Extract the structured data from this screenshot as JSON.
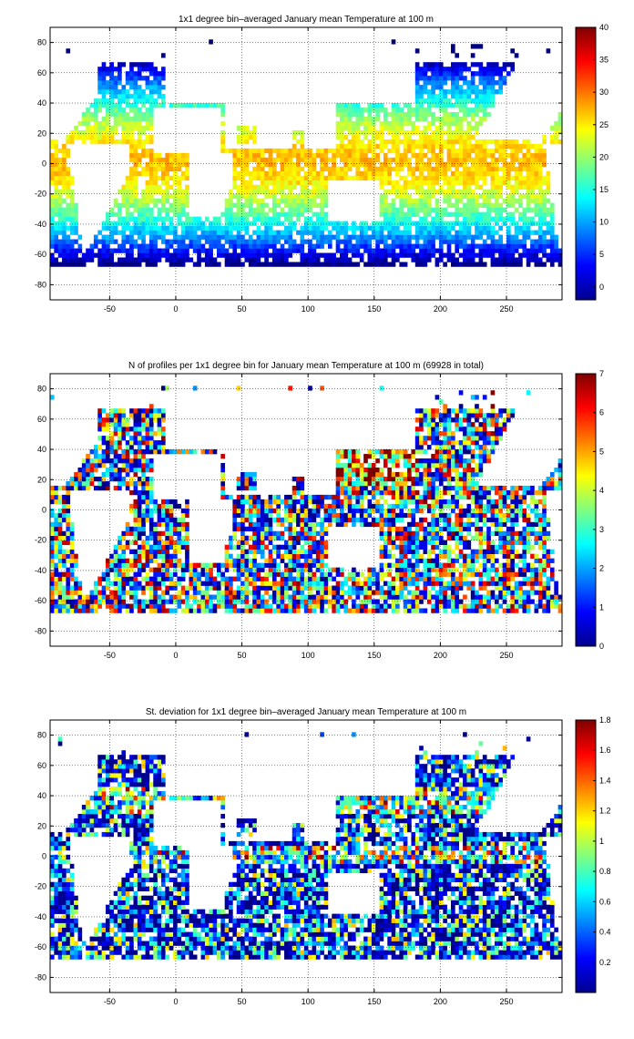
{
  "chart_data": [
    {
      "type": "heatmap",
      "title": "1x1 degree bin–averaged January mean Temperature at 100 m",
      "xlim": [
        -95,
        292
      ],
      "ylim": [
        -90,
        90
      ],
      "x_ticks": [
        -50,
        0,
        50,
        100,
        150,
        200,
        250
      ],
      "y_ticks": [
        80,
        60,
        40,
        20,
        0,
        -20,
        -40,
        -60,
        -80
      ],
      "colorbar": {
        "min": -2,
        "max": 40,
        "ticks": [
          0,
          5,
          10,
          15,
          20,
          25,
          30,
          35,
          40
        ]
      },
      "colormap": "jet",
      "grid": true
    },
    {
      "type": "heatmap",
      "title": "N of profiles per 1x1 degree bin for January mean Temperature at 100 m (69928 in total)",
      "xlim": [
        -95,
        292
      ],
      "ylim": [
        -90,
        90
      ],
      "x_ticks": [
        -50,
        0,
        50,
        100,
        150,
        200,
        250
      ],
      "y_ticks": [
        80,
        60,
        40,
        20,
        0,
        -20,
        -40,
        -60,
        -80
      ],
      "colorbar": {
        "min": 0,
        "max": 7,
        "ticks": [
          0,
          1,
          2,
          3,
          4,
          5,
          6,
          7
        ]
      },
      "colormap": "jet",
      "grid": true
    },
    {
      "type": "heatmap",
      "title": "St. deviation for 1x1 degree bin–averaged January mean Temperature at 100 m",
      "xlim": [
        -95,
        292
      ],
      "ylim": [
        -90,
        90
      ],
      "x_ticks": [
        -50,
        0,
        50,
        100,
        150,
        200,
        250
      ],
      "y_ticks": [
        80,
        60,
        40,
        20,
        0,
        -20,
        -40,
        -60,
        -80
      ],
      "colorbar": {
        "min": 0,
        "max": 1.8,
        "ticks": [
          0.2,
          0.4,
          0.6,
          0.8,
          1,
          1.2,
          1.4,
          1.6,
          1.8
        ]
      },
      "colormap": "jet",
      "grid": true
    }
  ]
}
